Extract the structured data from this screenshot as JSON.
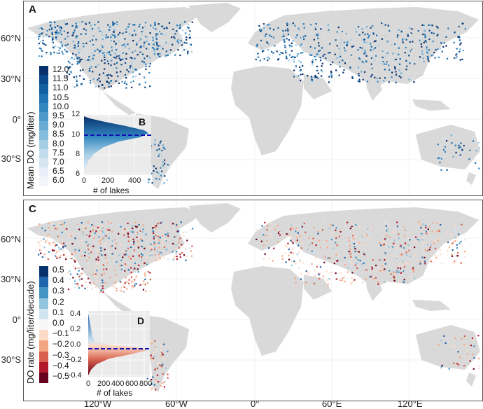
{
  "panel_a": {
    "label": "A",
    "legend_title": "Mean DO (mg/liter)",
    "legend_values": [
      "12.0",
      "11.5",
      "11.0",
      "10.5",
      "10.0",
      "9.5",
      "9.0",
      "8.5",
      "8.0",
      "7.5",
      "7.0",
      "6.5",
      "6.0"
    ],
    "legend_colors": [
      "#08306b",
      "#0b4a8c",
      "#12609f",
      "#1f74b4",
      "#3287c1",
      "#4b99cb",
      "#68abd4",
      "#86bcdc",
      "#a5cde4",
      "#c1dcec",
      "#d7e6f2",
      "#e7eef7",
      "#f3f5fb"
    ],
    "inset": {
      "label": "B",
      "y_ticks": [
        "12",
        "10",
        "8",
        "6"
      ],
      "x_ticks": [
        "0",
        "200",
        "400"
      ],
      "xlabel": "# of lakes"
    }
  },
  "panel_c": {
    "label": "C",
    "legend_title": "DO rate (mg/liter/decade)",
    "legend_values": [
      "0.5",
      "0.4",
      "0.3",
      "0.2",
      "0.1",
      "0.0",
      "−0.1",
      "−0.2",
      "−0.3",
      "−0.4",
      "−0.5"
    ],
    "legend_colors": [
      "#08306b",
      "#2166ac",
      "#4393c3",
      "#92c5de",
      "#d1e5f0",
      "#f7f7f7",
      "#fddbc7",
      "#f4a582",
      "#d6604d",
      "#b2182b",
      "#67001f"
    ],
    "inset": {
      "label": "D",
      "y_ticks": [
        "0.4",
        "0.2",
        "0.0",
        "−0.2",
        "−0.4"
      ],
      "x_ticks": [
        "0",
        "200",
        "400",
        "600",
        "800"
      ],
      "xlabel": "# of lakes"
    }
  },
  "axes": {
    "lat_ticks_a": [
      "60°N",
      "30°N",
      "0°",
      "30°S"
    ],
    "lat_ticks_c": [
      "60°N",
      "30°N",
      "0°",
      "30°S"
    ],
    "lon_ticks": [
      "120°W",
      "60°W",
      "0°",
      "60°E",
      "120°E"
    ]
  },
  "colors": {
    "land": "#d9d9d9",
    "frame": "#555555",
    "dashed_line": "#1010b0"
  }
}
